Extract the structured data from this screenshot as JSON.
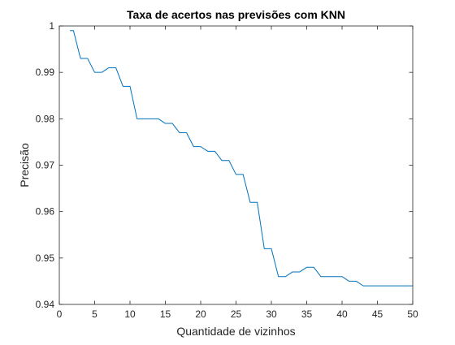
{
  "chart_data": {
    "type": "line",
    "title": "Taxa de acertos nas previsões com KNN",
    "xlabel": "Quantidade de vizinhos",
    "ylabel": "Precisão",
    "xlim": [
      0,
      50
    ],
    "ylim": [
      0.94,
      1
    ],
    "xticks": [
      0,
      5,
      10,
      15,
      20,
      25,
      30,
      35,
      40,
      45,
      50
    ],
    "xtick_labels": [
      "0",
      "5",
      "10",
      "15",
      "20",
      "25",
      "30",
      "35",
      "40",
      "45",
      "50"
    ],
    "yticks": [
      0.94,
      0.95,
      0.96,
      0.97,
      0.98,
      0.99,
      1
    ],
    "ytick_labels": [
      "0.94",
      "0.95",
      "0.96",
      "0.97",
      "0.98",
      "0.99",
      "1"
    ],
    "grid": false,
    "box": true,
    "series": [
      {
        "color": "#0072bd",
        "x": [
          1.5,
          2,
          3,
          4,
          5,
          6,
          7,
          8,
          9,
          10,
          11,
          12,
          13,
          14,
          15,
          16,
          17,
          18,
          19,
          20,
          21,
          22,
          23,
          24,
          25,
          26,
          27,
          28,
          29,
          30,
          31,
          32,
          33,
          34,
          35,
          36,
          37,
          38,
          39,
          40,
          41,
          42,
          43,
          44,
          45,
          46,
          47,
          48,
          49,
          50
        ],
        "y": [
          0.999,
          0.999,
          0.993,
          0.993,
          0.99,
          0.99,
          0.991,
          0.991,
          0.987,
          0.987,
          0.98,
          0.98,
          0.98,
          0.98,
          0.979,
          0.979,
          0.977,
          0.977,
          0.974,
          0.974,
          0.973,
          0.973,
          0.971,
          0.971,
          0.968,
          0.968,
          0.962,
          0.962,
          0.952,
          0.952,
          0.946,
          0.946,
          0.947,
          0.947,
          0.948,
          0.948,
          0.946,
          0.946,
          0.946,
          0.946,
          0.945,
          0.945,
          0.944,
          0.944,
          0.944,
          0.944,
          0.944,
          0.944,
          0.944,
          0.944
        ]
      }
    ]
  }
}
